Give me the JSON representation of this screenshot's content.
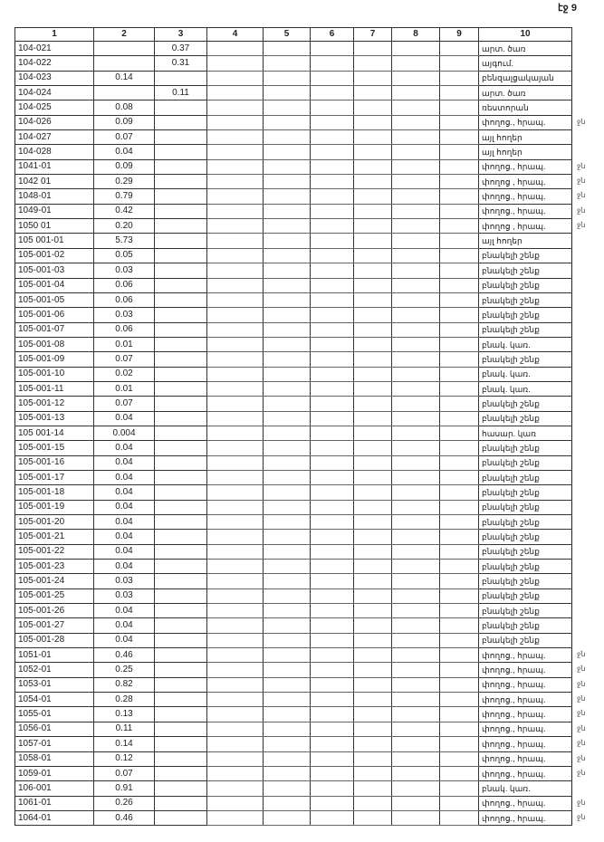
{
  "page_label": "էջ 9",
  "columns": [
    "1",
    "2",
    "3",
    "4",
    "5",
    "6",
    "7",
    "8",
    "9",
    "10"
  ],
  "rows": [
    [
      "104-021",
      "",
      "0.37",
      "արտ. ծառ",
      ""
    ],
    [
      "104-022",
      "",
      "0.31",
      "այգում.",
      ""
    ],
    [
      "104-023",
      "0.14",
      "",
      "բենզալցակայան",
      ""
    ],
    [
      "104-024",
      "",
      "0.11",
      "արտ. ծառ",
      ""
    ],
    [
      "104-025",
      "0.08",
      "",
      "ռեստորան",
      ""
    ],
    [
      "104-026",
      "0.09",
      "",
      "փողոց., հրապ.",
      "ջն"
    ],
    [
      "104-027",
      "0.07",
      "",
      "այլ հողեր",
      ""
    ],
    [
      "104-028",
      "0.04",
      "",
      "այլ հողեր",
      ""
    ],
    [
      "1041-01",
      "0.09",
      "",
      "փողոց., հրապ.",
      "ջն"
    ],
    [
      "1042 01",
      "0.29",
      "",
      "փողոց , հրապ.",
      "ջն"
    ],
    [
      "1048-01",
      "0.79",
      "",
      "փողոց., հրապ.",
      "ջն"
    ],
    [
      "1049-01",
      "0.42",
      "",
      "փողոց., հրապ.",
      "ջն"
    ],
    [
      "1050 01",
      "0.20",
      "",
      "փողոց , հրապ.",
      "ջն"
    ],
    [
      "105 001-01",
      "5.73",
      "",
      "այլ հողեր",
      ""
    ],
    [
      "105-001-02",
      "0.05",
      "",
      "բնակելի շենք",
      ""
    ],
    [
      "105-001-03",
      "0.03",
      "",
      "բնակելի շենք",
      ""
    ],
    [
      "105-001-04",
      "0.06",
      "",
      "բնակելի շենք",
      ""
    ],
    [
      "105-001-05",
      "0.06",
      "",
      "բնակելի շենք",
      ""
    ],
    [
      "105-001-06",
      "0.03",
      "",
      "բնակելի շենք",
      ""
    ],
    [
      "105-001-07",
      "0.06",
      "",
      "բնակելի շենք",
      ""
    ],
    [
      "105-001-08",
      "0.01",
      "",
      "բնակ. կառ.",
      ""
    ],
    [
      "105-001-09",
      "0.07",
      "",
      "բնակելի շենք",
      ""
    ],
    [
      "105-001-10",
      "0.02",
      "",
      "բնակ. կառ.",
      ""
    ],
    [
      "105-001-11",
      "0.01",
      "",
      "բնակ. կառ.",
      ""
    ],
    [
      "105-001-12",
      "0.07",
      "",
      "բնակելի շենք",
      ""
    ],
    [
      "105-001-13",
      "0.04",
      "",
      "բնակելի շենք",
      ""
    ],
    [
      "105 001-14",
      "0.004",
      "",
      "հասար. կառ",
      ""
    ],
    [
      "105-001-15",
      "0.04",
      "",
      "բնակելի շենք",
      ""
    ],
    [
      "105-001-16",
      "0.04",
      "",
      "բնակելի շենք",
      ""
    ],
    [
      "105-001-17",
      "0.04",
      "",
      "բնակելի շենք",
      ""
    ],
    [
      "105-001-18",
      "0.04",
      "",
      "բնակելի շենք",
      ""
    ],
    [
      "105-001-19",
      "0.04",
      "",
      "բնակելի շենք",
      ""
    ],
    [
      "105-001-20",
      "0.04",
      "",
      "բնակելի շենք",
      ""
    ],
    [
      "105-001-21",
      "0.04",
      "",
      "բնակելի շենք",
      ""
    ],
    [
      "105-001-22",
      "0.04",
      "",
      "բնակելի շենք",
      ""
    ],
    [
      "105-001-23",
      "0.04",
      "",
      "բնակելի շենք",
      ""
    ],
    [
      "105-001-24",
      "0.03",
      "",
      "բնակելի շենք",
      ""
    ],
    [
      "105-001-25",
      "0.03",
      "",
      "բնակելի շենք",
      ""
    ],
    [
      "105-001-26",
      "0.04",
      "",
      "բնակելի շենք",
      ""
    ],
    [
      "105-001-27",
      "0.04",
      "",
      "բնակելի շենք",
      ""
    ],
    [
      "105-001-28",
      "0.04",
      "",
      "բնակելի շենք",
      ""
    ],
    [
      "1051-01",
      "0.46",
      "",
      "փողոց., հրապ.",
      "ջն"
    ],
    [
      "1052-01",
      "0.25",
      "",
      "փողոց., հրապ.",
      "ջն"
    ],
    [
      "1053-01",
      "0.82",
      "",
      "փողոց., հրապ.",
      "ջն"
    ],
    [
      "1054-01",
      "0.28",
      "",
      "փողոց., հրապ.",
      "ջն"
    ],
    [
      "1055-01",
      "0.13",
      "",
      "փողոց., հրապ.",
      "ջն"
    ],
    [
      "1056-01",
      "0.11",
      "",
      "փողոց., հրապ.",
      "ջն"
    ],
    [
      "1057-01",
      "0.14",
      "",
      "փողոց., հրապ.",
      "ջն"
    ],
    [
      "1058-01",
      "0.12",
      "",
      "փողոց., հրապ.",
      "ջն"
    ],
    [
      "1059-01",
      "0.07",
      "",
      "փողոց., հրապ.",
      "ջն"
    ],
    [
      "106-001",
      "0.91",
      "",
      "բնակ. կառ.",
      ""
    ],
    [
      "1061-01",
      "0.26",
      "",
      "փողոց., հրապ.",
      "ջն"
    ],
    [
      "1064-01",
      "0.46",
      "",
      "փողոց., հրապ.",
      "ջն"
    ]
  ]
}
